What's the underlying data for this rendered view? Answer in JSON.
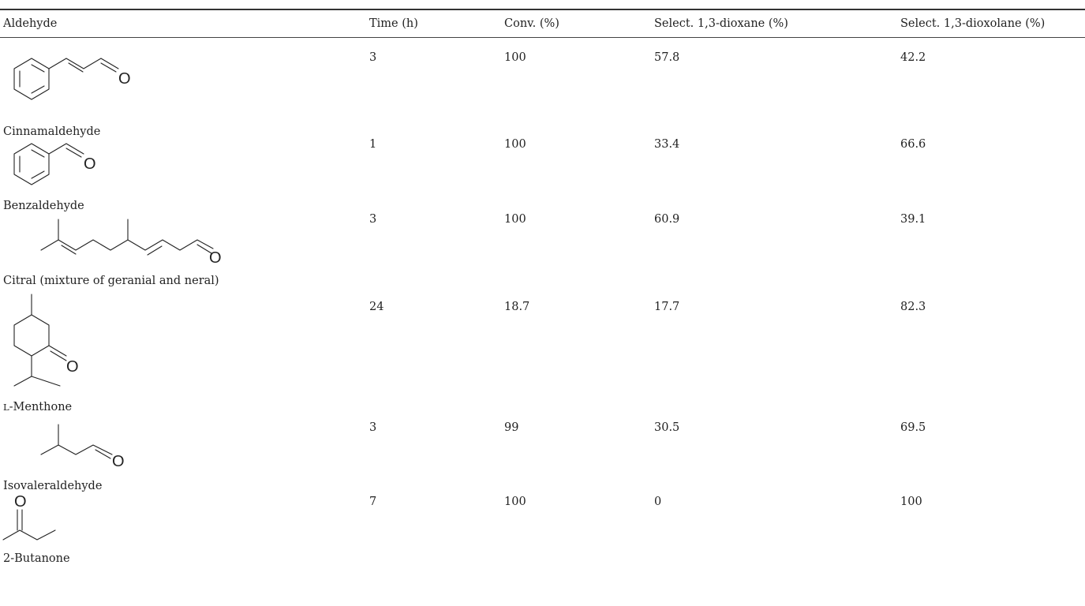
{
  "table": {
    "headers": [
      "Aldehyde",
      "Time (h)",
      "Conv. (%)",
      "Select. 1,3-dioxane (%)",
      "Select. 1,3-dioxolane (%)"
    ],
    "rows": [
      {
        "name": "Cinnamaldehyde",
        "time": "3",
        "conv": "100",
        "dioxane": "57.8",
        "dioxolane": "42.2",
        "structure_label": "O"
      },
      {
        "name": "Benzaldehyde",
        "time": "1",
        "conv": "100",
        "dioxane": "33.4",
        "dioxolane": "66.6",
        "structure_label": "O"
      },
      {
        "name": "Citral (mixture of geranial and neral)",
        "time": "3",
        "conv": "100",
        "dioxane": "60.9",
        "dioxolane": "39.1",
        "structure_label": "O"
      },
      {
        "name_prefix": "L",
        "name_rest": "-Menthone",
        "time": "24",
        "conv": "18.7",
        "dioxane": "17.7",
        "dioxolane": "82.3",
        "structure_label": "O"
      },
      {
        "name": "Isovaleraldehyde",
        "time": "3",
        "conv": "99",
        "dioxane": "30.5",
        "dioxolane": "69.5",
        "structure_label": "O"
      },
      {
        "name": "2-Butanone",
        "time": "7",
        "conv": "100",
        "dioxane": "0",
        "dioxolane": "100",
        "structure_label": "O"
      }
    ]
  }
}
